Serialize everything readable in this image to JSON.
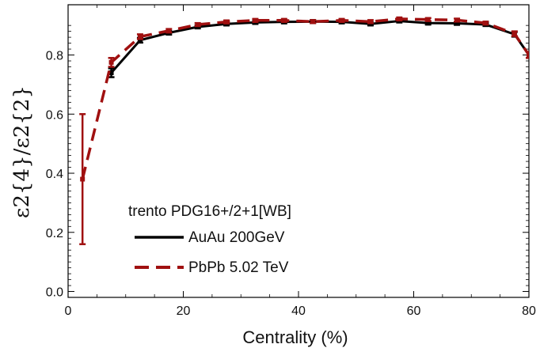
{
  "chart_data": {
    "type": "line",
    "xlabel": "Centrality (%)",
    "ylabel": "ε2{4}/ε2{2}",
    "xlim": [
      0,
      80
    ],
    "ylim": [
      -0.02,
      0.97
    ],
    "xticks": [
      0,
      20,
      40,
      60,
      80
    ],
    "yticks": [
      0.0,
      0.2,
      0.4,
      0.6,
      0.8
    ],
    "xtick_labels": [
      "0",
      "20",
      "40",
      "60",
      "80"
    ],
    "ytick_labels": [
      "0.0",
      "0.2",
      "0.4",
      "0.6",
      "0.8"
    ],
    "grid": false,
    "legend_title": "trento  PDG16+/2+1[WB]",
    "legend_position": "bottom-center",
    "series": [
      {
        "name": "AuAu 200GeV",
        "style": "solid",
        "color": "#000000",
        "x": [
          7.5,
          12.5,
          17.5,
          22.5,
          27.5,
          32.5,
          37.5,
          42.5,
          47.5,
          52.5,
          57.5,
          62.5,
          67.5,
          72.5,
          77.5,
          80
        ],
        "y": [
          0.74,
          0.85,
          0.875,
          0.895,
          0.905,
          0.91,
          0.912,
          0.913,
          0.912,
          0.905,
          0.915,
          0.908,
          0.907,
          0.903,
          0.87,
          0.8
        ],
        "err": [
          0.015,
          0.008,
          0.006,
          0.005,
          0.005,
          0.005,
          0.005,
          0.005,
          0.005,
          0.005,
          0.005,
          0.005,
          0.005,
          0.005,
          0.008,
          0.01
        ]
      },
      {
        "name": "PbPb 5.02 TeV",
        "style": "dashed",
        "color": "#a01010",
        "x": [
          2.5,
          7.5,
          12.5,
          17.5,
          22.5,
          27.5,
          32.5,
          37.5,
          42.5,
          47.5,
          52.5,
          57.5,
          62.5,
          67.5,
          72.5,
          77.5,
          80
        ],
        "y": [
          0.38,
          0.775,
          0.862,
          0.882,
          0.903,
          0.912,
          0.917,
          0.917,
          0.913,
          0.917,
          0.913,
          0.922,
          0.92,
          0.918,
          0.908,
          0.872,
          0.8
        ],
        "err": [
          0.22,
          0.015,
          0.008,
          0.006,
          0.005,
          0.005,
          0.005,
          0.005,
          0.005,
          0.005,
          0.005,
          0.005,
          0.005,
          0.005,
          0.005,
          0.008,
          0.01
        ]
      }
    ]
  },
  "colors": {
    "series_solid": "#000000",
    "series_dashed": "#a01010",
    "axis": "#000000"
  }
}
